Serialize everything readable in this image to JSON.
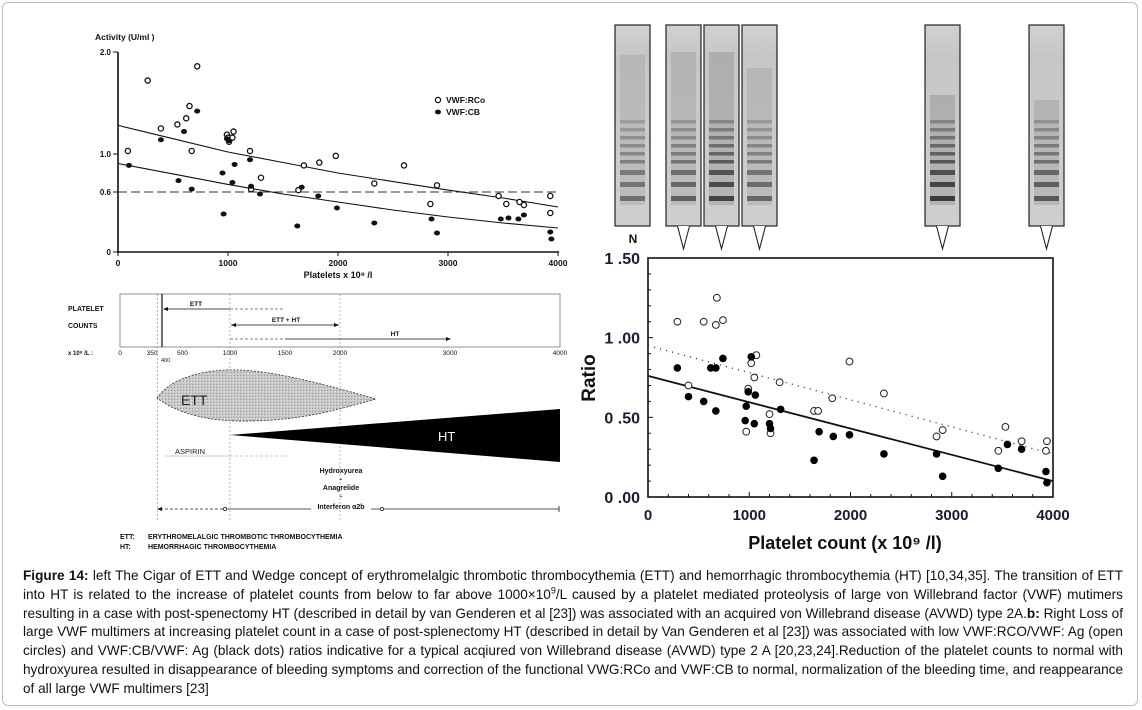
{
  "figure": {
    "caption": {
      "label": "Figure 14:",
      "part1": " left The Cigar of ETT and Wedge concept of erythromelalgic thrombotic thrombocythemia (ETT) and hemorrhagic thrombocythemia (HT) [10,34,35]. The transition of ETT into HT is related to the increase of platelet counts from below to far above 1000×10",
      "part1_sup": "9",
      "part2": "/L caused by a platelet mediated proteolysis of large von Willebrand factor (VWF) mutimers resulting in a case with post-spenectomy HT (described in detail by van Genderen et al [23]) was associated with an acquired von Willebrand disease (AVWD) type 2A.",
      "label_b": "b:",
      "part3": " Right Loss of large VWF multimers at increasing platelet count in a case of post-splenectomy HT (described in detail by Van Genderen et al [23]) was associated with low VWF:RCO/VWF: Ag (open circles) and VWF:CB/VWF: Ag (black dots) ratios indicative for a typical acqiured von Willebrand disease (AVWD) type 2 A [20,23,24].Reduction of the platelet counts to normal with hydroxyurea resulted in disappearance of bleeding symptoms and correction of the functional VWG:RCo and VWF:CB to normal, normalization of the bleeding time, and reappearance of all large VWF multimers [23]"
    },
    "cigar_wedge": {
      "row_label_1": "PLATELET",
      "row_label_2": "COUNTS",
      "axis_label": "x 10⁹ /L :",
      "ticks": [
        "0",
        "350",
        "500",
        "1000",
        "1500",
        "2000",
        "3000",
        "4000"
      ],
      "tick_values": [
        0,
        350,
        500,
        1000,
        1500,
        2000,
        3000,
        4000
      ],
      "sub_tick": "400",
      "arrow_ett": "ETT",
      "arrow_ett_ht": "ETT + HT",
      "arrow_ht": "HT",
      "cigar_label": "ETT",
      "wedge_label": "HT",
      "aspirin_label": "ASPIRIN",
      "drugs": [
        "Hydroxyurea",
        "+",
        "Anagrelide",
        "+",
        "Interferon α2b"
      ],
      "legend": [
        {
          "abbr": "ETT:",
          "text": "ERYTHROMELALGIC THROMBOTIC THROMBOCYTHEMIA"
        },
        {
          "abbr": "HT:",
          "text": "HEMORRHAGIC THROMBOCYTHEMIA"
        }
      ]
    },
    "gel_strips": {
      "normal_label": "N",
      "strip_count": 6
    }
  },
  "chart_data": [
    {
      "type": "scatter",
      "title": "",
      "ylabel": "Activity (U/ml )",
      "xlabel": "Platelets x 10⁹ /l",
      "xlim": [
        0,
        4000
      ],
      "ylim": [
        0,
        2.0
      ],
      "x_ticks": [
        "0",
        "1000",
        "2000",
        "3000",
        "4000"
      ],
      "x_tick_values": [
        0,
        1000,
        2000,
        3000,
        4000
      ],
      "y_ticks": [
        "0",
        "0.6",
        "1.0",
        "2.0"
      ],
      "y_tick_values": [
        0,
        0.6,
        1.0,
        2.0
      ],
      "reference_line": 0.6,
      "legend_position": "top-right",
      "series": [
        {
          "name": "VWF:RCo",
          "marker": "open-circle",
          "points": [
            [
              90,
              1.03
            ],
            [
              270,
              1.72
            ],
            [
              390,
              1.25
            ],
            [
              540,
              1.29
            ],
            [
              620,
              1.35
            ],
            [
              650,
              1.47
            ],
            [
              670,
              1.03
            ],
            [
              720,
              1.86
            ],
            [
              990,
              1.19
            ],
            [
              1000,
              1.16
            ],
            [
              1010,
              1.12
            ],
            [
              1040,
              1.16
            ],
            [
              1050,
              1.22
            ],
            [
              1200,
              1.03
            ],
            [
              1210,
              0.63
            ],
            [
              1300,
              0.75
            ],
            [
              1640,
              0.62
            ],
            [
              1690,
              0.88
            ],
            [
              1830,
              0.91
            ],
            [
              1980,
              0.98
            ],
            [
              2330,
              0.69
            ],
            [
              2600,
              0.88
            ],
            [
              2840,
              0.48
            ],
            [
              2900,
              0.67
            ],
            [
              3460,
              0.56
            ],
            [
              3530,
              0.48
            ],
            [
              3650,
              0.5
            ],
            [
              3690,
              0.47
            ],
            [
              3930,
              0.56
            ],
            [
              3930,
              0.39
            ]
          ],
          "trend": [
            [
              0,
              1.28
            ],
            [
              500,
              1.15
            ],
            [
              1000,
              1.02
            ],
            [
              1500,
              0.91
            ],
            [
              2000,
              0.8
            ],
            [
              2500,
              0.71
            ],
            [
              3000,
              0.62
            ],
            [
              3500,
              0.54
            ],
            [
              4000,
              0.45
            ]
          ]
        },
        {
          "name": "VWF:CB",
          "marker": "filled-circle",
          "points": [
            [
              100,
              0.88
            ],
            [
              390,
              1.14
            ],
            [
              600,
              1.22
            ],
            [
              720,
              1.42
            ],
            [
              550,
              0.72
            ],
            [
              670,
              0.63
            ],
            [
              950,
              0.8
            ],
            [
              960,
              0.38
            ],
            [
              990,
              1.15
            ],
            [
              1010,
              1.13
            ],
            [
              1040,
              0.7
            ],
            [
              1060,
              0.89
            ],
            [
              1200,
              0.94
            ],
            [
              1210,
              0.66
            ],
            [
              1290,
              0.58
            ],
            [
              1630,
              0.26
            ],
            [
              1670,
              0.65
            ],
            [
              1820,
              0.56
            ],
            [
              1990,
              0.44
            ],
            [
              2330,
              0.29
            ],
            [
              2850,
              0.33
            ],
            [
              2900,
              0.19
            ],
            [
              3480,
              0.33
            ],
            [
              3550,
              0.34
            ],
            [
              3640,
              0.33
            ],
            [
              3690,
              0.37
            ],
            [
              3930,
              0.2
            ],
            [
              3940,
              0.13
            ]
          ],
          "trend": [
            [
              0,
              0.9
            ],
            [
              500,
              0.79
            ],
            [
              1000,
              0.68
            ],
            [
              1500,
              0.58
            ],
            [
              2000,
              0.5
            ],
            [
              2500,
              0.42
            ],
            [
              3000,
              0.35
            ],
            [
              3500,
              0.29
            ],
            [
              4000,
              0.24
            ]
          ]
        }
      ]
    },
    {
      "type": "scatter",
      "title": "",
      "ylabel": "Ratio",
      "xlabel": "Platelet count (x 10⁹ /l)",
      "xlim": [
        0,
        4000
      ],
      "ylim": [
        0,
        1.5
      ],
      "x_ticks": [
        "0",
        "1000",
        "2000",
        "3000",
        "4000"
      ],
      "x_tick_values": [
        0,
        1000,
        2000,
        3000,
        4000
      ],
      "y_ticks": [
        "0 .00",
        "0 .50",
        "1 .00",
        "1 .50"
      ],
      "y_tick_values": [
        0,
        0.5,
        1.0,
        1.5
      ],
      "gel_strip_positions": [
        370,
        750,
        1110,
        2900,
        3930
      ],
      "series": [
        {
          "name": "VWF:RCo/VWF:Ag",
          "marker": "open-circle",
          "line_style": "dotted",
          "points": [
            [
              290,
              1.1
            ],
            [
              400,
              0.7
            ],
            [
              550,
              1.1
            ],
            [
              670,
              1.08
            ],
            [
              680,
              1.25
            ],
            [
              740,
              1.11
            ],
            [
              970,
              0.41
            ],
            [
              990,
              0.68
            ],
            [
              1020,
              0.84
            ],
            [
              1050,
              0.75
            ],
            [
              1070,
              0.89
            ],
            [
              1200,
              0.52
            ],
            [
              1210,
              0.4
            ],
            [
              1300,
              0.72
            ],
            [
              1640,
              0.54
            ],
            [
              1680,
              0.54
            ],
            [
              1820,
              0.62
            ],
            [
              1990,
              0.85
            ],
            [
              2330,
              0.65
            ],
            [
              2850,
              0.38
            ],
            [
              2910,
              0.42
            ],
            [
              3460,
              0.29
            ],
            [
              3530,
              0.44
            ],
            [
              3690,
              0.35
            ],
            [
              3930,
              0.29
            ],
            [
              3940,
              0.35
            ]
          ],
          "trend": [
            [
              0,
              0.95
            ],
            [
              4000,
              0.27
            ]
          ]
        },
        {
          "name": "VWF:CB/VWF:Ag",
          "marker": "filled-circle",
          "line_style": "solid",
          "points": [
            [
              290,
              0.81
            ],
            [
              400,
              0.63
            ],
            [
              550,
              0.6
            ],
            [
              620,
              0.81
            ],
            [
              670,
              0.81
            ],
            [
              670,
              0.54
            ],
            [
              740,
              0.87
            ],
            [
              960,
              0.48
            ],
            [
              970,
              0.57
            ],
            [
              990,
              0.66
            ],
            [
              1020,
              0.88
            ],
            [
              1050,
              0.46
            ],
            [
              1060,
              0.64
            ],
            [
              1200,
              0.46
            ],
            [
              1210,
              0.43
            ],
            [
              1310,
              0.55
            ],
            [
              1640,
              0.23
            ],
            [
              1690,
              0.41
            ],
            [
              1830,
              0.38
            ],
            [
              1990,
              0.39
            ],
            [
              2330,
              0.27
            ],
            [
              2850,
              0.27
            ],
            [
              2910,
              0.13
            ],
            [
              3460,
              0.18
            ],
            [
              3550,
              0.33
            ],
            [
              3690,
              0.3
            ],
            [
              3930,
              0.16
            ],
            [
              3940,
              0.09
            ]
          ],
          "trend": [
            [
              0,
              0.76
            ],
            [
              4000,
              0.1
            ]
          ]
        }
      ]
    }
  ]
}
